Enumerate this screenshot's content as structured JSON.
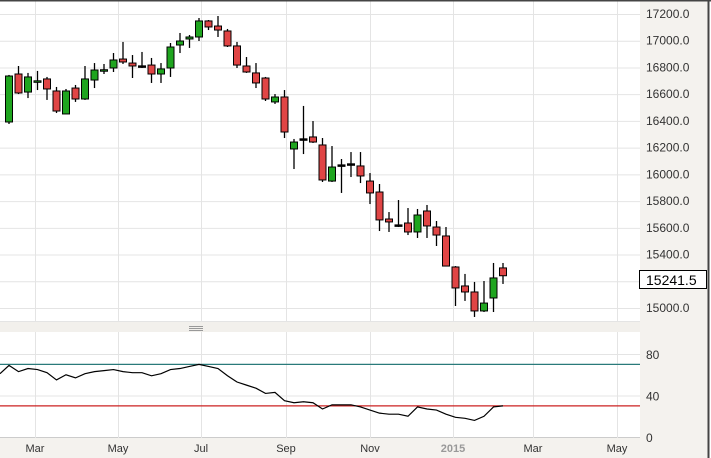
{
  "chart_data": {
    "type": "candlestick",
    "price_axis": {
      "ticks": [
        "17200.0",
        "17000.0",
        "16800.0",
        "16600.0",
        "16400.0",
        "16200.0",
        "16000.0",
        "15800.0",
        "15600.0",
        "15400.0",
        "15000.0"
      ],
      "tick_values": [
        17200,
        17000,
        16800,
        16600,
        16400,
        16200,
        16000,
        15800,
        15600,
        15400,
        15000
      ],
      "ylim": [
        14900,
        17300
      ]
    },
    "last_price_label": "15241.5",
    "x_axis": {
      "ticks": [
        "Mar",
        "May",
        "Jul",
        "Sep",
        "Nov",
        "2015",
        "Mar",
        "May"
      ],
      "year_tick": "2015"
    },
    "colors": {
      "up": "#1fa51f",
      "down": "#e04545",
      "upper_band": "#2a7a7a",
      "lower_band": "#cc2222",
      "oscillator": "#000000"
    },
    "ohlc": [
      [
        16392,
        16744,
        16377,
        16736
      ],
      [
        16751,
        16811,
        16601,
        16609
      ],
      [
        16616,
        16759,
        16571,
        16729
      ],
      [
        16695,
        16774,
        16631,
        16700
      ],
      [
        16714,
        16729,
        16557,
        16639
      ],
      [
        16624,
        16654,
        16459,
        16474
      ],
      [
        16452,
        16639,
        16452,
        16624
      ],
      [
        16646,
        16669,
        16542,
        16564
      ],
      [
        16564,
        16811,
        16557,
        16714
      ],
      [
        16706,
        16833,
        16646,
        16781
      ],
      [
        16778,
        16826,
        16751,
        16783
      ],
      [
        16796,
        16908,
        16766,
        16856
      ],
      [
        16863,
        16991,
        16826,
        16841
      ],
      [
        16833,
        16893,
        16721,
        16811
      ],
      [
        16809,
        16916,
        16796,
        16812
      ],
      [
        16818,
        16871,
        16684,
        16751
      ],
      [
        16751,
        16833,
        16684,
        16789
      ],
      [
        16796,
        16983,
        16729,
        16953
      ],
      [
        16968,
        17058,
        16908,
        16998
      ],
      [
        17013,
        17043,
        16946,
        17028
      ],
      [
        17028,
        17170,
        16998,
        17148
      ],
      [
        17148,
        17155,
        17080,
        17103
      ],
      [
        17110,
        17185,
        17028,
        17080
      ],
      [
        17073,
        17088,
        16953,
        16961
      ],
      [
        16961,
        16991,
        16796,
        16818
      ],
      [
        16811,
        16878,
        16759,
        16766
      ],
      [
        16759,
        16833,
        16646,
        16684
      ],
      [
        16721,
        16729,
        16549,
        16564
      ],
      [
        16542,
        16601,
        16527,
        16579
      ],
      [
        16579,
        16631,
        16272,
        16317
      ],
      [
        16190,
        16265,
        16040,
        16242
      ],
      [
        16263,
        16512,
        16152,
        16266
      ],
      [
        16280,
        16399,
        16235,
        16242
      ],
      [
        16220,
        16272,
        15943,
        15958
      ],
      [
        15950,
        16212,
        15943,
        16055
      ],
      [
        16068,
        16115,
        15861,
        16071
      ],
      [
        16076,
        16167,
        15980,
        16079
      ],
      [
        16063,
        16167,
        15935,
        15988
      ],
      [
        15950,
        16010,
        15778,
        15861
      ],
      [
        15868,
        15928,
        15576,
        15659
      ],
      [
        15666,
        15718,
        15569,
        15644
      ],
      [
        15620,
        15808,
        15606,
        15622
      ],
      [
        15636,
        15748,
        15546,
        15569
      ],
      [
        15569,
        15741,
        15524,
        15696
      ],
      [
        15726,
        15771,
        15524,
        15614
      ],
      [
        15606,
        15651,
        15464,
        15546
      ],
      [
        15539,
        15606,
        15314,
        15314
      ],
      [
        15307,
        15314,
        15015,
        15150
      ],
      [
        15165,
        15255,
        15053,
        15120
      ],
      [
        15120,
        15195,
        14933,
        14978
      ],
      [
        14978,
        15202,
        14970,
        15037
      ],
      [
        15075,
        15337,
        14970,
        15225
      ],
      [
        15300,
        15337,
        15180,
        15241.5
      ]
    ],
    "oscillator": {
      "axis_ticks": [
        "80",
        "40",
        "0"
      ],
      "tick_values": [
        80,
        40,
        0
      ],
      "ylim": [
        0,
        100
      ],
      "upper_band": 70,
      "lower_band": 30,
      "values": [
        69,
        63,
        66,
        65,
        62,
        55,
        60,
        57,
        61,
        63,
        64,
        65,
        63,
        62,
        62,
        59,
        61,
        65,
        66,
        68,
        70,
        68,
        66,
        59,
        53,
        50,
        47,
        42,
        43,
        35,
        33,
        34,
        33,
        27,
        31,
        31,
        31,
        29,
        26,
        23,
        22,
        22,
        20,
        29,
        27,
        26,
        22,
        19,
        18,
        16,
        20,
        29,
        30
      ]
    },
    "grid": true
  }
}
